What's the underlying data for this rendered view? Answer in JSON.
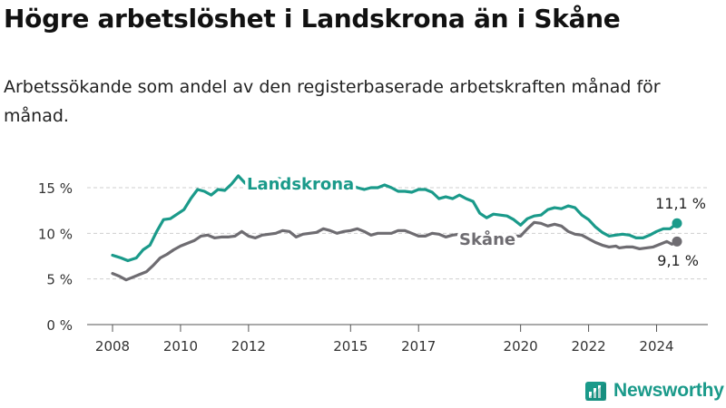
{
  "header": {
    "title": "Högre arbetslöshet i Landskrona än i Skåne",
    "subtitle": "Arbetssökande som andel av den registerbaserade arbetskraften månad för månad."
  },
  "brand": {
    "name": "Newsworthy"
  },
  "chart_data": {
    "type": "line",
    "title": "Högre arbetslöshet i Landskrona än i Skåne",
    "subtitle": "Arbetssökande som andel av den registerbaserade arbetskraften månad för månad.",
    "xlabel": "",
    "ylabel": "",
    "xlim": [
      2008,
      2024.6
    ],
    "ylim": [
      0,
      15
    ],
    "grid": true,
    "yticks": [
      0,
      5,
      10,
      15
    ],
    "ytick_labels": [
      "0 %",
      "5 %",
      "10 %",
      "15 %"
    ],
    "xticks": [
      2008,
      2010,
      2012,
      2015,
      2017,
      2020,
      2022,
      2024
    ],
    "xtick_labels": [
      "2008",
      "2010",
      "2012",
      "2015",
      "2017",
      "2020",
      "2022",
      "2024"
    ],
    "series": [
      {
        "name": "Landskrona",
        "color": "#1a9a8a",
        "label_text": "Landskrona",
        "end_label": "11,1 %",
        "points": [
          [
            2008.0,
            7.6
          ],
          [
            2008.25,
            7.3
          ],
          [
            2008.45,
            7.0
          ],
          [
            2008.7,
            7.3
          ],
          [
            2008.9,
            8.2
          ],
          [
            2009.1,
            8.7
          ],
          [
            2009.3,
            10.2
          ],
          [
            2009.5,
            11.5
          ],
          [
            2009.7,
            11.6
          ],
          [
            2009.9,
            12.1
          ],
          [
            2010.1,
            12.6
          ],
          [
            2010.3,
            13.8
          ],
          [
            2010.5,
            14.8
          ],
          [
            2010.7,
            14.6
          ],
          [
            2010.9,
            14.2
          ],
          [
            2011.1,
            14.8
          ],
          [
            2011.3,
            14.7
          ],
          [
            2011.5,
            15.4
          ],
          [
            2011.7,
            16.3
          ],
          [
            2011.9,
            15.5
          ],
          [
            2012.1,
            15.0
          ],
          [
            2012.3,
            15.3
          ],
          [
            2012.5,
            15.6
          ],
          [
            2012.7,
            15.7
          ],
          [
            2012.9,
            16.0
          ],
          [
            2013.3,
            15.5
          ],
          [
            2013.8,
            15.5
          ],
          [
            2014.3,
            15.5
          ],
          [
            2014.8,
            15.6
          ],
          [
            2015.2,
            15.0
          ],
          [
            2015.4,
            14.8
          ],
          [
            2015.6,
            15.0
          ],
          [
            2015.8,
            15.0
          ],
          [
            2016.0,
            15.3
          ],
          [
            2016.2,
            15.0
          ],
          [
            2016.4,
            14.6
          ],
          [
            2016.6,
            14.6
          ],
          [
            2016.8,
            14.5
          ],
          [
            2017.0,
            14.8
          ],
          [
            2017.2,
            14.8
          ],
          [
            2017.4,
            14.5
          ],
          [
            2017.6,
            13.8
          ],
          [
            2017.8,
            14.0
          ],
          [
            2018.0,
            13.8
          ],
          [
            2018.2,
            14.2
          ],
          [
            2018.4,
            13.8
          ],
          [
            2018.6,
            13.5
          ],
          [
            2018.8,
            12.2
          ],
          [
            2019.0,
            11.7
          ],
          [
            2019.2,
            12.1
          ],
          [
            2019.4,
            12.0
          ],
          [
            2019.6,
            11.9
          ],
          [
            2019.8,
            11.5
          ],
          [
            2020.0,
            10.9
          ],
          [
            2020.2,
            11.6
          ],
          [
            2020.4,
            11.9
          ],
          [
            2020.6,
            12.0
          ],
          [
            2020.8,
            12.6
          ],
          [
            2021.0,
            12.8
          ],
          [
            2021.2,
            12.7
          ],
          [
            2021.4,
            13.0
          ],
          [
            2021.6,
            12.8
          ],
          [
            2021.8,
            12.0
          ],
          [
            2022.0,
            11.5
          ],
          [
            2022.2,
            10.7
          ],
          [
            2022.4,
            10.1
          ],
          [
            2022.6,
            9.7
          ],
          [
            2022.8,
            9.8
          ],
          [
            2023.0,
            9.9
          ],
          [
            2023.2,
            9.8
          ],
          [
            2023.4,
            9.5
          ],
          [
            2023.6,
            9.5
          ],
          [
            2023.8,
            9.8
          ],
          [
            2024.0,
            10.2
          ],
          [
            2024.2,
            10.5
          ],
          [
            2024.4,
            10.5
          ],
          [
            2024.6,
            11.1
          ]
        ]
      },
      {
        "name": "Skåne",
        "color": "#6e6c71",
        "label_text": "Skåne",
        "end_label": "9,1 %",
        "points": [
          [
            2008.0,
            5.6
          ],
          [
            2008.2,
            5.3
          ],
          [
            2008.4,
            4.9
          ],
          [
            2008.6,
            5.2
          ],
          [
            2008.8,
            5.5
          ],
          [
            2009.0,
            5.8
          ],
          [
            2009.2,
            6.5
          ],
          [
            2009.4,
            7.3
          ],
          [
            2009.6,
            7.7
          ],
          [
            2009.8,
            8.2
          ],
          [
            2010.0,
            8.6
          ],
          [
            2010.2,
            8.9
          ],
          [
            2010.4,
            9.2
          ],
          [
            2010.6,
            9.7
          ],
          [
            2010.8,
            9.8
          ],
          [
            2011.0,
            9.5
          ],
          [
            2011.2,
            9.6
          ],
          [
            2011.4,
            9.6
          ],
          [
            2011.6,
            9.7
          ],
          [
            2011.8,
            10.2
          ],
          [
            2012.0,
            9.7
          ],
          [
            2012.2,
            9.5
          ],
          [
            2012.4,
            9.8
          ],
          [
            2012.6,
            9.9
          ],
          [
            2012.8,
            10.0
          ],
          [
            2013.0,
            10.3
          ],
          [
            2013.2,
            10.2
          ],
          [
            2013.4,
            9.6
          ],
          [
            2013.6,
            9.9
          ],
          [
            2013.8,
            10.0
          ],
          [
            2014.0,
            10.1
          ],
          [
            2014.2,
            10.5
          ],
          [
            2014.4,
            10.3
          ],
          [
            2014.6,
            10.0
          ],
          [
            2014.8,
            10.2
          ],
          [
            2015.0,
            10.3
          ],
          [
            2015.2,
            10.5
          ],
          [
            2015.4,
            10.2
          ],
          [
            2015.6,
            9.8
          ],
          [
            2015.8,
            10.0
          ],
          [
            2016.0,
            10.0
          ],
          [
            2016.2,
            10.0
          ],
          [
            2016.4,
            10.3
          ],
          [
            2016.6,
            10.3
          ],
          [
            2016.8,
            10.0
          ],
          [
            2017.0,
            9.7
          ],
          [
            2017.2,
            9.7
          ],
          [
            2017.4,
            10.0
          ],
          [
            2017.6,
            9.9
          ],
          [
            2017.8,
            9.6
          ],
          [
            2018.0,
            9.8
          ],
          [
            2018.2,
            9.9
          ],
          [
            2018.4,
            9.9
          ],
          [
            2018.6,
            9.6
          ],
          [
            2018.8,
            9.7
          ],
          [
            2019.0,
            9.7
          ],
          [
            2019.5,
            9.7
          ],
          [
            2020.0,
            9.7
          ],
          [
            2020.2,
            10.5
          ],
          [
            2020.4,
            11.2
          ],
          [
            2020.6,
            11.1
          ],
          [
            2020.8,
            10.8
          ],
          [
            2021.0,
            11.0
          ],
          [
            2021.2,
            10.8
          ],
          [
            2021.4,
            10.2
          ],
          [
            2021.6,
            9.9
          ],
          [
            2021.8,
            9.8
          ],
          [
            2022.0,
            9.4
          ],
          [
            2022.2,
            9.0
          ],
          [
            2022.4,
            8.7
          ],
          [
            2022.6,
            8.5
          ],
          [
            2022.8,
            8.6
          ],
          [
            2022.9,
            8.4
          ],
          [
            2023.1,
            8.5
          ],
          [
            2023.3,
            8.5
          ],
          [
            2023.5,
            8.3
          ],
          [
            2023.7,
            8.4
          ],
          [
            2023.9,
            8.5
          ],
          [
            2024.1,
            8.8
          ],
          [
            2024.3,
            9.1
          ],
          [
            2024.45,
            8.8
          ],
          [
            2024.6,
            9.1
          ]
        ]
      }
    ]
  }
}
